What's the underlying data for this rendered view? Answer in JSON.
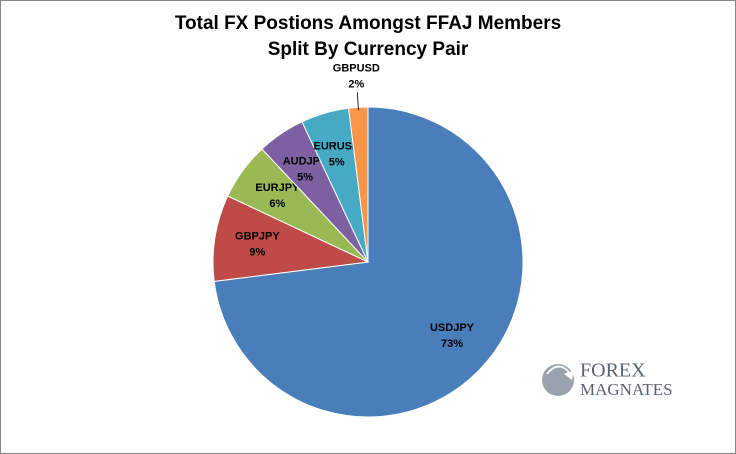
{
  "chart_data": {
    "type": "pie",
    "title": [
      "Total FX Postions Amongst FFAJ Members",
      "Split By Currency Pair"
    ],
    "categories": [
      "USDJPY",
      "GBPJPY",
      "EURJPY",
      "AUDJPY",
      "EURUSD",
      "GBPUSD"
    ],
    "values": [
      73,
      9,
      6,
      5,
      5,
      2
    ],
    "value_labels": [
      "73%",
      "9%",
      "6%",
      "5%",
      "5%",
      "2%"
    ],
    "colors": [
      "#4a7ebb",
      "#be4b48",
      "#98b954",
      "#7d60a0",
      "#46aac5",
      "#f79646"
    ]
  },
  "logo": [
    "FOREX",
    "MAGNATES"
  ]
}
